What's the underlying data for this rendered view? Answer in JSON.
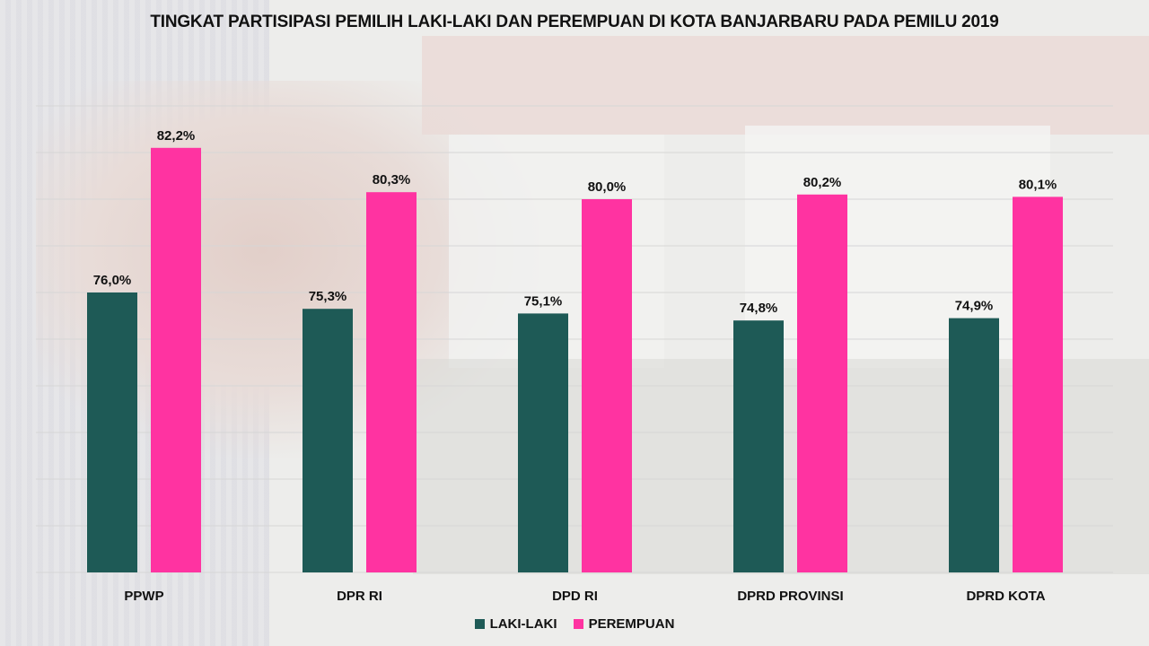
{
  "chart_data": {
    "type": "bar",
    "title": "TINGKAT PARTISIPASI PEMILIH LAKI-LAKI DAN PEREMPUAN DI KOTA BANJARBARU PADA PEMILU 2019",
    "categories": [
      "PPWP",
      "DPR RI",
      "DPD RI",
      "DPRD PROVINSI",
      "DPRD KOTA"
    ],
    "series": [
      {
        "name": "LAKI-LAKI",
        "color": "#1e5a56",
        "values": [
          76.0,
          75.3,
          75.1,
          74.8,
          74.9
        ],
        "labels": [
          "76,0%",
          "75,3%",
          "75,1%",
          "74,8%",
          "74,9%"
        ]
      },
      {
        "name": "PEREMPUAN",
        "color": "#ff33a1",
        "values": [
          82.2,
          80.3,
          80.0,
          80.2,
          80.1
        ],
        "labels": [
          "82,2%",
          "80,3%",
          "80,0%",
          "80,2%",
          "80,1%"
        ]
      }
    ],
    "xlabel": "",
    "ylabel": "",
    "ylim": [
      64,
      84
    ],
    "grid": true,
    "legend": "bottom-center"
  }
}
